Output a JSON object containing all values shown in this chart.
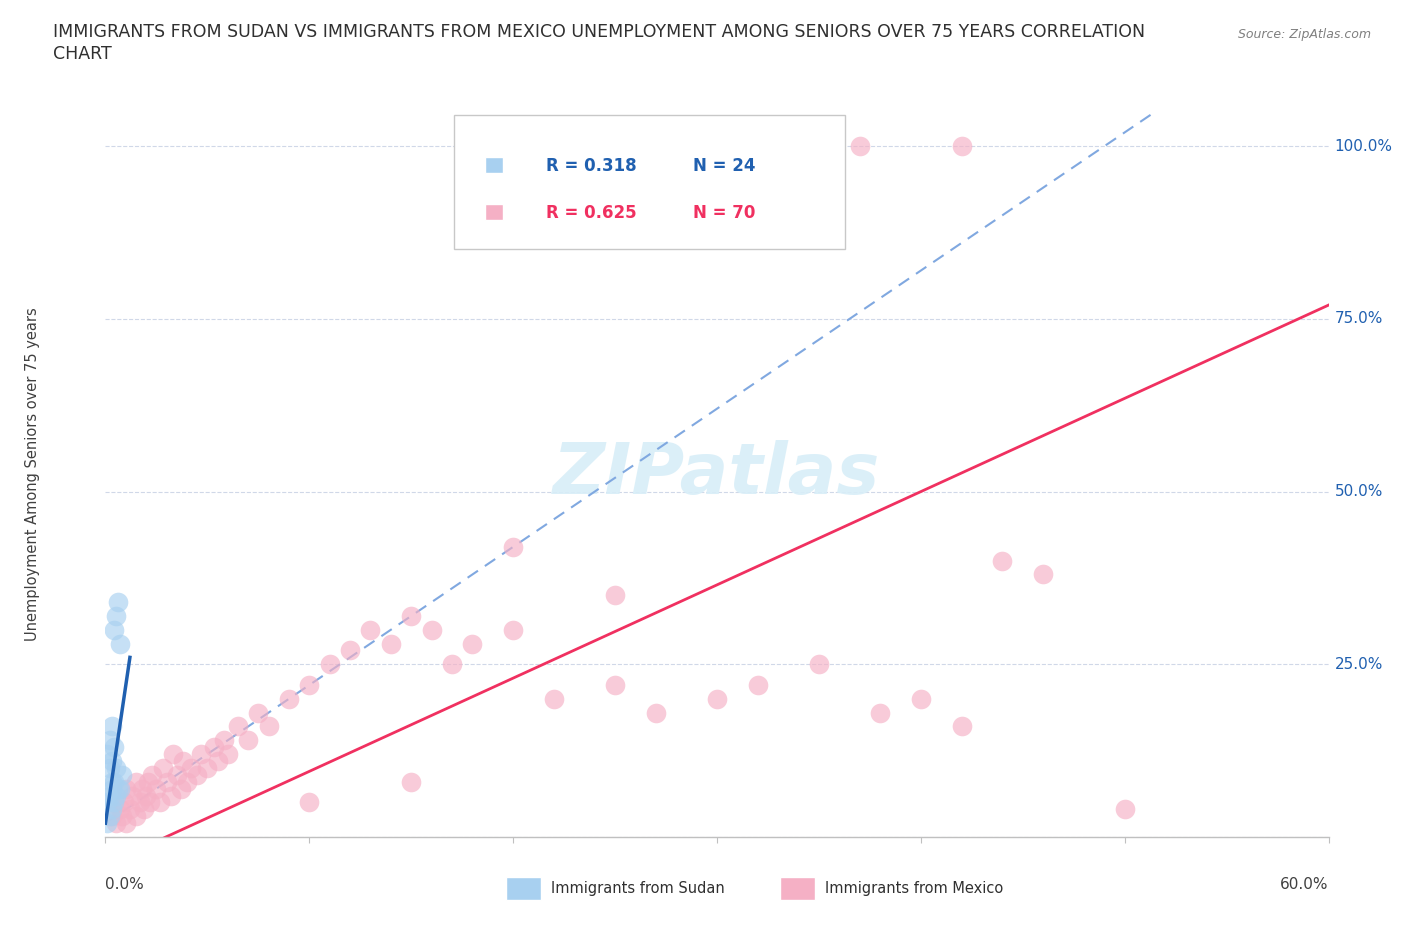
{
  "title_line1": "IMMIGRANTS FROM SUDAN VS IMMIGRANTS FROM MEXICO UNEMPLOYMENT AMONG SENIORS OVER 75 YEARS CORRELATION",
  "title_line2": "CHART",
  "source": "Source: ZipAtlas.com",
  "ylabel": "Unemployment Among Seniors over 75 years",
  "sudan_R": 0.318,
  "sudan_N": 24,
  "mexico_R": 0.625,
  "mexico_N": 70,
  "sudan_color": "#a8d0f0",
  "mexico_color": "#f5b0c5",
  "sudan_line_color": "#2060b0",
  "mexico_line_color": "#f03060",
  "dashed_line_color": "#80a8e0",
  "xlim": [
    0.0,
    0.6
  ],
  "ylim": [
    0.0,
    1.05
  ],
  "watermark_color": "#d8eef8",
  "background_color": "#ffffff",
  "grid_color": "#d0d8e8",
  "title_fontsize": 12.5,
  "tick_fontsize": 11,
  "label_fontsize": 10.5,
  "sudan_x": [
    0.001,
    0.001,
    0.001,
    0.002,
    0.002,
    0.002,
    0.002,
    0.003,
    0.003,
    0.003,
    0.003,
    0.003,
    0.004,
    0.004,
    0.004,
    0.004,
    0.005,
    0.005,
    0.005,
    0.006,
    0.006,
    0.007,
    0.007,
    0.008
  ],
  "sudan_y": [
    0.02,
    0.05,
    0.12,
    0.03,
    0.06,
    0.1,
    0.14,
    0.04,
    0.07,
    0.08,
    0.11,
    0.16,
    0.05,
    0.08,
    0.13,
    0.3,
    0.06,
    0.1,
    0.32,
    0.07,
    0.34,
    0.07,
    0.28,
    0.09
  ],
  "mexico_x": [
    0.003,
    0.005,
    0.007,
    0.008,
    0.009,
    0.01,
    0.01,
    0.012,
    0.013,
    0.015,
    0.015,
    0.017,
    0.018,
    0.019,
    0.02,
    0.021,
    0.022,
    0.023,
    0.025,
    0.027,
    0.028,
    0.03,
    0.032,
    0.033,
    0.035,
    0.037,
    0.038,
    0.04,
    0.042,
    0.045,
    0.047,
    0.05,
    0.053,
    0.055,
    0.058,
    0.06,
    0.065,
    0.07,
    0.075,
    0.08,
    0.09,
    0.1,
    0.11,
    0.12,
    0.13,
    0.14,
    0.15,
    0.16,
    0.17,
    0.18,
    0.2,
    0.22,
    0.25,
    0.27,
    0.3,
    0.32,
    0.35,
    0.38,
    0.4,
    0.42,
    0.44,
    0.46,
    0.35,
    0.37,
    0.42,
    0.2,
    0.25,
    0.1,
    0.15,
    0.5
  ],
  "mexico_y": [
    0.03,
    0.02,
    0.04,
    0.03,
    0.05,
    0.02,
    0.07,
    0.04,
    0.06,
    0.03,
    0.08,
    0.05,
    0.07,
    0.04,
    0.06,
    0.08,
    0.05,
    0.09,
    0.07,
    0.05,
    0.1,
    0.08,
    0.06,
    0.12,
    0.09,
    0.07,
    0.11,
    0.08,
    0.1,
    0.09,
    0.12,
    0.1,
    0.13,
    0.11,
    0.14,
    0.12,
    0.16,
    0.14,
    0.18,
    0.16,
    0.2,
    0.22,
    0.25,
    0.27,
    0.3,
    0.28,
    0.32,
    0.3,
    0.25,
    0.28,
    0.3,
    0.2,
    0.22,
    0.18,
    0.2,
    0.22,
    0.25,
    0.18,
    0.2,
    0.16,
    0.4,
    0.38,
    1.0,
    1.0,
    1.0,
    0.42,
    0.35,
    0.05,
    0.08,
    0.04
  ]
}
